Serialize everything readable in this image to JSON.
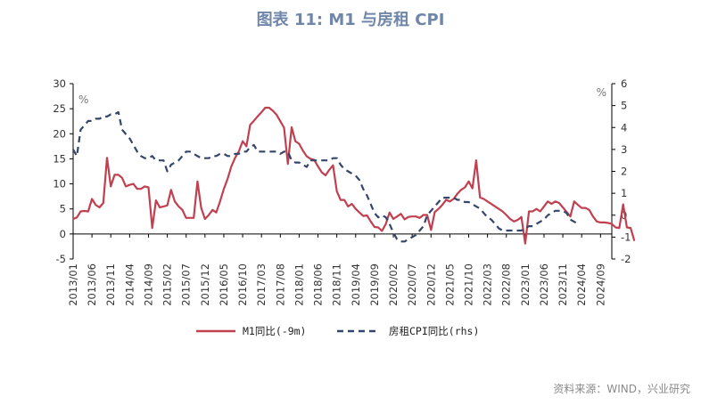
{
  "title": "图表 11: M1 与房租 CPI",
  "source": "资料来源：WIND，兴业研究",
  "chart_data": {
    "type": "line",
    "y_left": {
      "unit": "%",
      "ylim": [
        -5,
        30
      ],
      "ticks": [
        "-5",
        "0",
        "5",
        "10",
        "15",
        "20",
        "25",
        "30"
      ]
    },
    "y_right": {
      "unit": "%",
      "ylim": [
        -2,
        6
      ],
      "ticks": [
        "-2",
        "-1",
        "0",
        "1",
        "2",
        "3",
        "4",
        "5",
        "6"
      ]
    },
    "x_tick_labels": [
      "2013/01",
      "2013/06",
      "2013/11",
      "2014/04",
      "2014/09",
      "2015/02",
      "2015/07",
      "2015/12",
      "2016/05",
      "2016/10",
      "2017/03",
      "2017/08",
      "2018/01",
      "2018/06",
      "2018/11",
      "2019/04",
      "2019/09",
      "2020/02",
      "2020/07",
      "2020/12",
      "2021/05",
      "2021/10",
      "2022/03",
      "2022/08",
      "2023/01",
      "2023/06",
      "2023/11",
      "2024/04",
      "2024/09"
    ],
    "series": [
      {
        "name": "M1同比(-9m)",
        "axis": "left",
        "color": "#c0404f",
        "style": "solid",
        "start": "2013/01",
        "values": [
          3.0,
          3.3,
          4.5,
          4.6,
          4.5,
          7.0,
          5.8,
          5.3,
          6.2,
          15.2,
          9.5,
          11.8,
          11.8,
          11.2,
          9.5,
          9.8,
          10.0,
          9.0,
          9.0,
          9.5,
          9.3,
          1.2,
          6.7,
          5.3,
          5.5,
          5.7,
          8.8,
          6.5,
          5.5,
          4.8,
          3.2,
          3.2,
          3.2,
          10.5,
          5.2,
          3.0,
          3.8,
          4.8,
          4.3,
          6.5,
          9.0,
          11.0,
          13.5,
          15.2,
          16.5,
          18.5,
          17.5,
          21.8,
          22.6,
          23.5,
          24.3,
          25.2,
          25.2,
          24.6,
          23.8,
          22.5,
          21.2,
          14.0,
          21.3,
          18.5,
          18.0,
          16.6,
          15.5,
          15.0,
          14.8,
          13.5,
          12.3,
          11.7,
          12.8,
          13.7,
          8.5,
          6.8,
          6.8,
          5.5,
          6.0,
          5.0,
          4.3,
          3.6,
          3.7,
          2.5,
          1.4,
          1.3,
          0.6,
          2.0,
          4.3,
          3.0,
          3.5,
          4.0,
          2.9,
          3.4,
          3.5,
          3.5,
          3.2,
          3.8,
          3.8,
          0.8,
          4.4,
          5.0,
          5.8,
          6.8,
          6.5,
          7.0,
          8.0,
          8.8,
          9.3,
          10.5,
          9.1,
          14.7,
          7.3,
          7.0,
          6.5,
          6.0,
          5.5,
          5.0,
          4.5,
          3.8,
          3.0,
          2.5,
          2.8,
          3.4,
          -1.9,
          4.5,
          4.5,
          5.0,
          4.5,
          5.5,
          6.5,
          6.0,
          6.5,
          6.2,
          5.3,
          4.4,
          3.5,
          6.5,
          5.8,
          5.2,
          5.2,
          4.8,
          3.5,
          2.5,
          2.3,
          2.3,
          2.2,
          2.0,
          1.3,
          1.2,
          5.9,
          1.3,
          1.2,
          -1.4
        ]
      },
      {
        "name": "房租CPI同比(rhs)",
        "axis": "right",
        "color": "#34466a",
        "style": "dashed",
        "start": "2013/01",
        "values": [
          3.0,
          2.7,
          3.9,
          4.1,
          4.3,
          4.3,
          4.4,
          4.4,
          4.5,
          4.5,
          4.6,
          4.6,
          4.7,
          3.9,
          3.7,
          3.5,
          3.2,
          2.9,
          2.7,
          2.6,
          2.6,
          2.7,
          2.5,
          2.5,
          2.5,
          2.0,
          2.3,
          2.4,
          2.5,
          2.7,
          2.9,
          2.9,
          2.8,
          2.7,
          2.6,
          2.6,
          2.6,
          2.7,
          2.7,
          2.8,
          2.8,
          2.7,
          2.7,
          2.8,
          2.8,
          2.9,
          2.9,
          3.1,
          3.2,
          2.9,
          2.9,
          2.9,
          2.9,
          2.9,
          2.9,
          2.8,
          2.9,
          2.9,
          2.5,
          2.4,
          2.4,
          2.3,
          2.2,
          2.5,
          2.5,
          2.5,
          2.5,
          2.5,
          2.5,
          2.6,
          2.6,
          2.3,
          2.1,
          2.0,
          1.9,
          1.8,
          1.6,
          1.2,
          0.9,
          0.5,
          0.1,
          -0.1,
          0.0,
          -0.1,
          -0.4,
          -0.8,
          -1.1,
          -1.2,
          -1.2,
          -1.1,
          -1.0,
          -0.9,
          -0.7,
          -0.5,
          0.0,
          0.2,
          0.4,
          0.6,
          0.8,
          0.8,
          0.8,
          0.8,
          0.7,
          0.7,
          0.6,
          0.6,
          0.5,
          0.4,
          0.3,
          0.1,
          -0.1,
          -0.2,
          -0.4,
          -0.6,
          -0.7,
          -0.7,
          -0.7,
          -0.7,
          -0.7,
          -0.7,
          -0.6,
          -0.5,
          -0.5,
          -0.4,
          -0.3,
          -0.2,
          0.0,
          0.1,
          0.2,
          0.2,
          0.2,
          0.1,
          -0.2,
          -0.3,
          -0.4
        ]
      }
    ],
    "grid": false,
    "legend_position": "bottom"
  }
}
